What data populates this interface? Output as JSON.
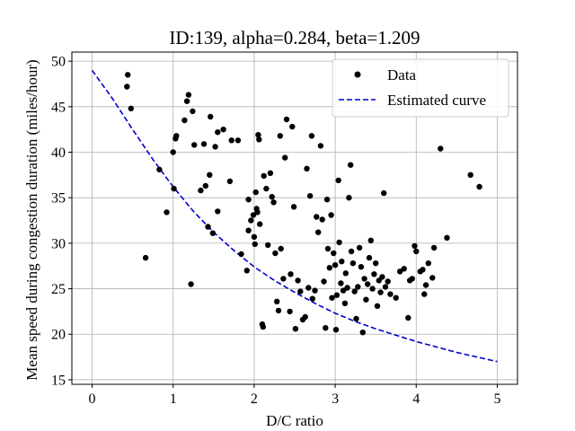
{
  "chart_data": {
    "type": "scatter",
    "title": "ID:139, alpha=0.284, beta=1.209",
    "xlabel": "D/C ratio",
    "ylabel": "Mean speed during congestion duration (miles/hour)",
    "xlim": [
      -0.25,
      5.25
    ],
    "ylim": [
      14.5,
      51.0
    ],
    "xticks": [
      0,
      1,
      2,
      3,
      4,
      5
    ],
    "yticks": [
      15,
      20,
      25,
      30,
      35,
      40,
      45,
      50
    ],
    "grid": true,
    "legend_position": "top-right",
    "colors": {
      "data": "#000000",
      "curve": "#0000cc",
      "grid": "#b0b0b0"
    },
    "series": [
      {
        "name": "Data",
        "kind": "scatter",
        "marker": "circle",
        "points": [
          [
            0.43,
            47.2
          ],
          [
            0.44,
            48.5
          ],
          [
            0.48,
            44.8
          ],
          [
            0.66,
            28.4
          ],
          [
            0.83,
            38.1
          ],
          [
            0.92,
            33.4
          ],
          [
            1.0,
            40.0
          ],
          [
            1.01,
            36.0
          ],
          [
            1.03,
            41.5
          ],
          [
            1.04,
            41.8
          ],
          [
            1.14,
            43.5
          ],
          [
            1.17,
            45.6
          ],
          [
            1.19,
            46.3
          ],
          [
            1.22,
            25.5
          ],
          [
            1.24,
            44.5
          ],
          [
            1.26,
            40.8
          ],
          [
            1.34,
            35.8
          ],
          [
            1.38,
            40.9
          ],
          [
            1.4,
            36.3
          ],
          [
            1.43,
            31.8
          ],
          [
            1.45,
            37.5
          ],
          [
            1.46,
            43.9
          ],
          [
            1.49,
            31.1
          ],
          [
            1.52,
            40.6
          ],
          [
            1.55,
            42.2
          ],
          [
            1.55,
            33.5
          ],
          [
            1.62,
            42.5
          ],
          [
            1.7,
            36.8
          ],
          [
            1.72,
            41.3
          ],
          [
            1.8,
            41.3
          ],
          [
            1.84,
            28.8
          ],
          [
            1.91,
            27.0
          ],
          [
            1.93,
            34.8
          ],
          [
            1.93,
            31.4
          ],
          [
            1.96,
            32.5
          ],
          [
            1.99,
            33.1
          ],
          [
            2.0,
            30.7
          ],
          [
            2.01,
            29.9
          ],
          [
            2.02,
            35.6
          ],
          [
            2.03,
            33.8
          ],
          [
            2.04,
            33.4
          ],
          [
            2.05,
            41.9
          ],
          [
            2.06,
            41.4
          ],
          [
            2.07,
            32.1
          ],
          [
            2.1,
            21.1
          ],
          [
            2.11,
            20.8
          ],
          [
            2.12,
            37.4
          ],
          [
            2.15,
            36.0
          ],
          [
            2.17,
            29.8
          ],
          [
            2.2,
            37.7
          ],
          [
            2.22,
            35.1
          ],
          [
            2.24,
            34.5
          ],
          [
            2.26,
            28.9
          ],
          [
            2.28,
            23.6
          ],
          [
            2.3,
            22.6
          ],
          [
            2.32,
            41.8
          ],
          [
            2.33,
            29.4
          ],
          [
            2.36,
            26.1
          ],
          [
            2.38,
            39.4
          ],
          [
            2.4,
            43.6
          ],
          [
            2.44,
            22.5
          ],
          [
            2.45,
            26.6
          ],
          [
            2.47,
            42.8
          ],
          [
            2.49,
            34.0
          ],
          [
            2.51,
            20.6
          ],
          [
            2.54,
            25.9
          ],
          [
            2.57,
            24.7
          ],
          [
            2.6,
            21.6
          ],
          [
            2.63,
            21.9
          ],
          [
            2.65,
            38.2
          ],
          [
            2.67,
            25.1
          ],
          [
            2.69,
            35.2
          ],
          [
            2.71,
            41.8
          ],
          [
            2.72,
            23.9
          ],
          [
            2.75,
            24.8
          ],
          [
            2.77,
            32.9
          ],
          [
            2.79,
            31.2
          ],
          [
            2.82,
            40.7
          ],
          [
            2.84,
            32.6
          ],
          [
            2.86,
            25.8
          ],
          [
            2.88,
            20.7
          ],
          [
            2.9,
            34.8
          ],
          [
            2.91,
            29.4
          ],
          [
            2.93,
            27.3
          ],
          [
            2.95,
            33.1
          ],
          [
            2.96,
            24.0
          ],
          [
            2.98,
            28.9
          ],
          [
            3.0,
            27.6
          ],
          [
            3.01,
            20.5
          ],
          [
            3.02,
            24.3
          ],
          [
            3.04,
            36.9
          ],
          [
            3.05,
            30.1
          ],
          [
            3.07,
            25.6
          ],
          [
            3.08,
            28.0
          ],
          [
            3.1,
            24.8
          ],
          [
            3.12,
            23.4
          ],
          [
            3.13,
            26.7
          ],
          [
            3.15,
            25.1
          ],
          [
            3.17,
            35.0
          ],
          [
            3.19,
            38.6
          ],
          [
            3.2,
            29.1
          ],
          [
            3.22,
            27.8
          ],
          [
            3.24,
            24.7
          ],
          [
            3.26,
            21.7
          ],
          [
            3.28,
            25.2
          ],
          [
            3.3,
            29.5
          ],
          [
            3.32,
            27.4
          ],
          [
            3.34,
            20.2
          ],
          [
            3.36,
            26.1
          ],
          [
            3.38,
            23.8
          ],
          [
            3.4,
            25.5
          ],
          [
            3.42,
            28.4
          ],
          [
            3.44,
            30.3
          ],
          [
            3.46,
            25.0
          ],
          [
            3.48,
            26.6
          ],
          [
            3.5,
            27.8
          ],
          [
            3.52,
            23.1
          ],
          [
            3.54,
            25.9
          ],
          [
            3.56,
            24.6
          ],
          [
            3.58,
            26.3
          ],
          [
            3.6,
            35.5
          ],
          [
            3.62,
            25.2
          ],
          [
            3.65,
            25.8
          ],
          [
            3.68,
            24.4
          ],
          [
            3.75,
            24.0
          ],
          [
            3.8,
            26.9
          ],
          [
            3.85,
            27.2
          ],
          [
            3.9,
            21.8
          ],
          [
            3.92,
            25.9
          ],
          [
            3.95,
            26.1
          ],
          [
            3.98,
            29.7
          ],
          [
            4.0,
            29.1
          ],
          [
            4.05,
            26.9
          ],
          [
            4.08,
            27.1
          ],
          [
            4.1,
            24.4
          ],
          [
            4.12,
            25.4
          ],
          [
            4.15,
            27.8
          ],
          [
            4.2,
            26.2
          ],
          [
            4.22,
            29.5
          ],
          [
            4.3,
            40.4
          ],
          [
            4.38,
            30.6
          ],
          [
            4.67,
            37.5
          ],
          [
            4.78,
            36.2
          ]
        ]
      },
      {
        "name": "Estimated curve",
        "kind": "line",
        "style": "dashed",
        "points": [
          [
            0.0,
            49.0
          ],
          [
            0.25,
            45.9
          ],
          [
            0.5,
            42.5
          ],
          [
            0.75,
            39.2
          ],
          [
            1.0,
            36.2
          ],
          [
            1.25,
            33.5
          ],
          [
            1.5,
            31.2
          ],
          [
            1.75,
            29.2
          ],
          [
            2.0,
            27.4
          ],
          [
            2.25,
            25.9
          ],
          [
            2.5,
            24.6
          ],
          [
            2.75,
            23.4
          ],
          [
            3.0,
            22.3
          ],
          [
            3.25,
            21.4
          ],
          [
            3.5,
            20.6
          ],
          [
            3.75,
            19.9
          ],
          [
            4.0,
            19.2
          ],
          [
            4.25,
            18.6
          ],
          [
            4.5,
            18.0
          ],
          [
            4.75,
            17.5
          ],
          [
            5.0,
            17.0
          ]
        ]
      }
    ]
  }
}
